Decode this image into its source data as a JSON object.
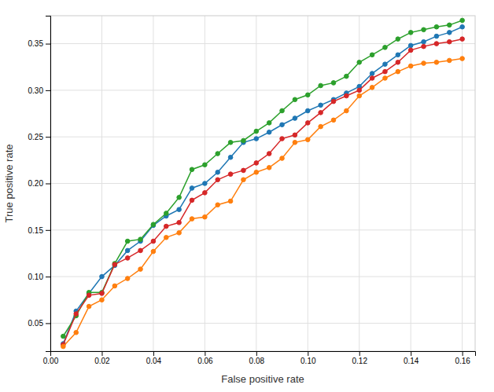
{
  "chart_data": {
    "type": "line",
    "xlabel": "False positive rate",
    "ylabel": "True positive rate",
    "x": [
      0.005,
      0.01,
      0.015,
      0.02,
      0.025,
      0.03,
      0.035,
      0.04,
      0.045,
      0.05,
      0.055,
      0.06,
      0.065,
      0.07,
      0.075,
      0.08,
      0.085,
      0.09,
      0.095,
      0.1,
      0.105,
      0.11,
      0.115,
      0.12,
      0.125,
      0.13,
      0.135,
      0.14,
      0.145,
      0.15,
      0.155,
      0.16
    ],
    "series": [
      {
        "color": "#1f77b4",
        "marker": "circle",
        "values": [
          0.028,
          0.063,
          0.082,
          0.1,
          0.112,
          0.128,
          0.138,
          0.155,
          0.165,
          0.172,
          0.195,
          0.2,
          0.212,
          0.228,
          0.244,
          0.248,
          0.255,
          0.263,
          0.27,
          0.278,
          0.284,
          0.29,
          0.297,
          0.304,
          0.318,
          0.328,
          0.338,
          0.348,
          0.352,
          0.358,
          0.362,
          0.368
        ]
      },
      {
        "color": "#2ca02c",
        "marker": "circle",
        "values": [
          0.036,
          0.058,
          0.083,
          0.083,
          0.114,
          0.138,
          0.14,
          0.156,
          0.168,
          0.185,
          0.215,
          0.22,
          0.232,
          0.244,
          0.246,
          0.256,
          0.265,
          0.278,
          0.29,
          0.295,
          0.305,
          0.308,
          0.315,
          0.33,
          0.338,
          0.346,
          0.355,
          0.362,
          0.365,
          0.368,
          0.37,
          0.375
        ]
      },
      {
        "color": "#d62728",
        "marker": "circle",
        "values": [
          0.027,
          0.06,
          0.08,
          0.082,
          0.113,
          0.12,
          0.128,
          0.138,
          0.154,
          0.158,
          0.182,
          0.19,
          0.204,
          0.21,
          0.214,
          0.222,
          0.232,
          0.248,
          0.252,
          0.265,
          0.276,
          0.288,
          0.294,
          0.3,
          0.313,
          0.32,
          0.33,
          0.343,
          0.347,
          0.35,
          0.352,
          0.355
        ]
      },
      {
        "color": "#ff7f0e",
        "marker": "circle",
        "values": [
          0.025,
          0.04,
          0.068,
          0.075,
          0.09,
          0.098,
          0.108,
          0.127,
          0.142,
          0.147,
          0.162,
          0.164,
          0.177,
          0.181,
          0.204,
          0.212,
          0.217,
          0.227,
          0.244,
          0.247,
          0.261,
          0.268,
          0.278,
          0.294,
          0.303,
          0.313,
          0.32,
          0.326,
          0.329,
          0.33,
          0.332,
          0.334
        ]
      }
    ],
    "xlim": [
      0.0,
      0.165
    ],
    "ylim": [
      0.02,
      0.38
    ],
    "xticks": [
      {
        "value": 0.0,
        "label": "0.00"
      },
      0.02,
      0.04,
      0.06,
      0.08,
      {
        "value": 0.1,
        "label": "0.10"
      },
      0.12,
      0.14,
      0.16
    ],
    "yticks": [
      0.05,
      {
        "value": 0.1,
        "label": "0.10"
      },
      0.15,
      {
        "value": 0.2,
        "label": "0.20"
      },
      0.25,
      {
        "value": 0.3,
        "label": "0.30"
      },
      0.35
    ],
    "grid": true
  }
}
